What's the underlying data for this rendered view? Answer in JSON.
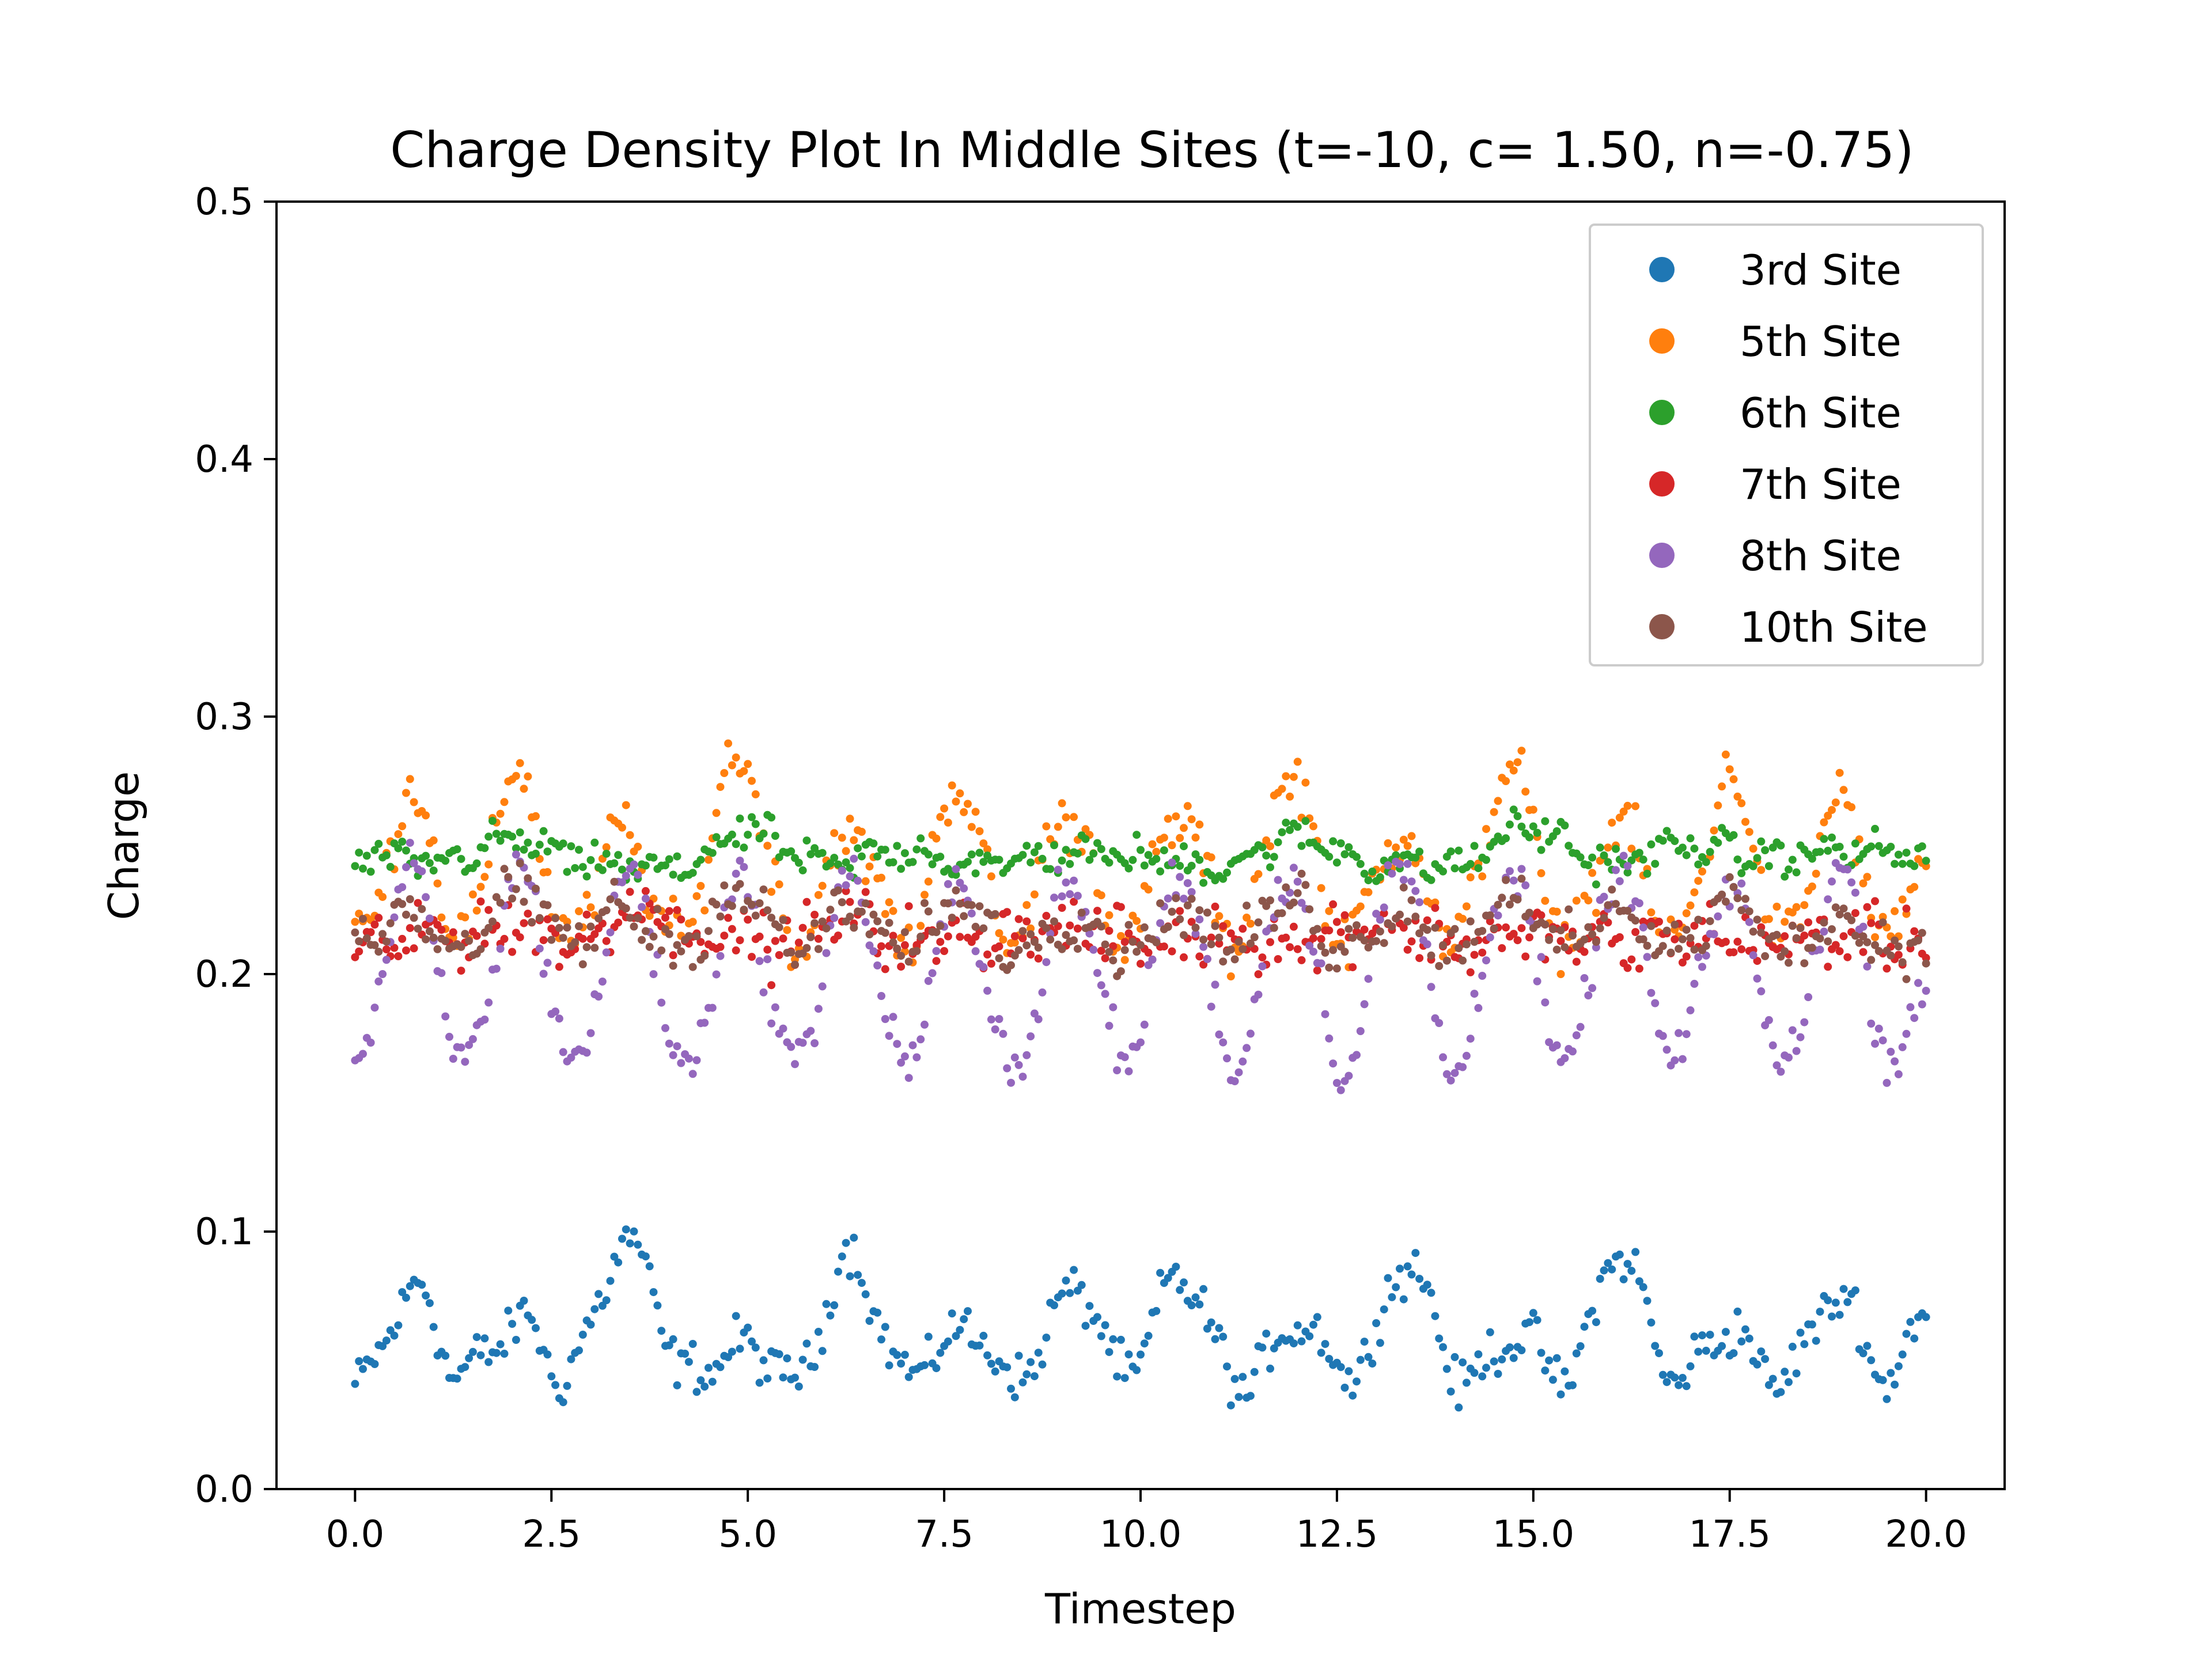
{
  "chart_data": {
    "type": "scatter",
    "title": "Charge Density Plot In Middle Sites (t=-10, c= 1.50, n=-0.75)",
    "xlabel": "Timestep",
    "ylabel": "Charge",
    "xlim": [
      -1.0,
      21.0
    ],
    "ylim": [
      0.0,
      0.5
    ],
    "xticks": [
      0.0,
      2.5,
      5.0,
      7.5,
      10.0,
      12.5,
      15.0,
      17.5,
      20.0
    ],
    "xtick_labels": [
      "0.0",
      "2.5",
      "5.0",
      "7.5",
      "10.0",
      "12.5",
      "15.0",
      "17.5",
      "20.0"
    ],
    "yticks": [
      0.0,
      0.1,
      0.2,
      0.3,
      0.4,
      0.5
    ],
    "ytick_labels": [
      "0.0",
      "0.1",
      "0.2",
      "0.3",
      "0.4",
      "0.5"
    ],
    "legend_position": "top-right",
    "sampling": {
      "x_start": 0.0,
      "x_end": 20.0,
      "step": 0.05
    },
    "series": [
      {
        "name": "3rd Site",
        "color": "#1f77b4",
        "keypoints": [
          [
            0.0,
            0.04
          ],
          [
            0.8,
            0.078
          ],
          [
            1.3,
            0.045
          ],
          [
            2.2,
            0.065
          ],
          [
            2.6,
            0.043
          ],
          [
            3.5,
            0.095
          ],
          [
            4.2,
            0.045
          ],
          [
            5.0,
            0.055
          ],
          [
            5.6,
            0.042
          ],
          [
            6.3,
            0.09
          ],
          [
            7.0,
            0.045
          ],
          [
            7.8,
            0.062
          ],
          [
            8.4,
            0.043
          ],
          [
            9.2,
            0.078
          ],
          [
            9.8,
            0.045
          ],
          [
            10.5,
            0.082
          ],
          [
            11.3,
            0.04
          ],
          [
            12.0,
            0.065
          ],
          [
            12.7,
            0.045
          ],
          [
            13.4,
            0.088
          ],
          [
            14.1,
            0.042
          ],
          [
            14.8,
            0.06
          ],
          [
            15.4,
            0.043
          ],
          [
            16.1,
            0.092
          ],
          [
            16.8,
            0.043
          ],
          [
            17.5,
            0.062
          ],
          [
            18.1,
            0.042
          ],
          [
            18.9,
            0.075
          ],
          [
            19.5,
            0.043
          ],
          [
            20.0,
            0.068
          ]
        ],
        "noise": 0.007
      },
      {
        "name": "5th Site",
        "color": "#ff7f0e",
        "keypoints": [
          [
            0.0,
            0.215
          ],
          [
            0.8,
            0.27
          ],
          [
            1.3,
            0.212
          ],
          [
            2.1,
            0.278
          ],
          [
            2.7,
            0.212
          ],
          [
            3.4,
            0.255
          ],
          [
            4.1,
            0.212
          ],
          [
            4.9,
            0.285
          ],
          [
            5.6,
            0.212
          ],
          [
            6.3,
            0.255
          ],
          [
            7.0,
            0.212
          ],
          [
            7.7,
            0.275
          ],
          [
            8.3,
            0.212
          ],
          [
            9.1,
            0.262
          ],
          [
            9.8,
            0.212
          ],
          [
            10.5,
            0.262
          ],
          [
            11.2,
            0.212
          ],
          [
            11.9,
            0.278
          ],
          [
            12.6,
            0.212
          ],
          [
            13.3,
            0.255
          ],
          [
            14.0,
            0.212
          ],
          [
            14.7,
            0.282
          ],
          [
            15.4,
            0.212
          ],
          [
            16.1,
            0.258
          ],
          [
            16.8,
            0.212
          ],
          [
            17.5,
            0.275
          ],
          [
            18.2,
            0.212
          ],
          [
            18.9,
            0.268
          ],
          [
            19.5,
            0.212
          ],
          [
            20.0,
            0.245
          ]
        ],
        "noise": 0.008
      },
      {
        "name": "6th Site",
        "color": "#2ca02c",
        "keypoints": [
          [
            0.0,
            0.245
          ],
          [
            1.0,
            0.243
          ],
          [
            2.0,
            0.252
          ],
          [
            3.0,
            0.243
          ],
          [
            4.0,
            0.24
          ],
          [
            5.0,
            0.255
          ],
          [
            6.0,
            0.242
          ],
          [
            7.0,
            0.248
          ],
          [
            8.0,
            0.242
          ],
          [
            9.0,
            0.247
          ],
          [
            10.0,
            0.245
          ],
          [
            11.0,
            0.242
          ],
          [
            12.0,
            0.253
          ],
          [
            13.0,
            0.243
          ],
          [
            14.0,
            0.242
          ],
          [
            14.9,
            0.257
          ],
          [
            16.0,
            0.243
          ],
          [
            17.0,
            0.25
          ],
          [
            18.0,
            0.245
          ],
          [
            19.0,
            0.248
          ],
          [
            20.0,
            0.246
          ]
        ],
        "noise": 0.005
      },
      {
        "name": "7th Site",
        "color": "#d62728",
        "keypoints": [
          [
            0.0,
            0.21
          ],
          [
            1.0,
            0.215
          ],
          [
            2.0,
            0.218
          ],
          [
            3.0,
            0.212
          ],
          [
            3.5,
            0.228
          ],
          [
            4.5,
            0.215
          ],
          [
            5.5,
            0.212
          ],
          [
            6.3,
            0.222
          ],
          [
            7.0,
            0.212
          ],
          [
            8.0,
            0.215
          ],
          [
            9.0,
            0.218
          ],
          [
            10.0,
            0.212
          ],
          [
            11.0,
            0.215
          ],
          [
            12.0,
            0.212
          ],
          [
            13.0,
            0.22
          ],
          [
            14.0,
            0.212
          ],
          [
            15.0,
            0.215
          ],
          [
            16.0,
            0.212
          ],
          [
            17.0,
            0.215
          ],
          [
            18.0,
            0.212
          ],
          [
            19.0,
            0.215
          ],
          [
            20.0,
            0.212
          ]
        ],
        "noise": 0.008
      },
      {
        "name": "8th Site",
        "color": "#9467bd",
        "keypoints": [
          [
            0.0,
            0.163
          ],
          [
            0.7,
            0.24
          ],
          [
            1.4,
            0.165
          ],
          [
            2.1,
            0.24
          ],
          [
            2.8,
            0.165
          ],
          [
            3.5,
            0.24
          ],
          [
            4.2,
            0.162
          ],
          [
            4.9,
            0.235
          ],
          [
            5.6,
            0.165
          ],
          [
            6.3,
            0.238
          ],
          [
            7.0,
            0.165
          ],
          [
            7.7,
            0.232
          ],
          [
            8.4,
            0.163
          ],
          [
            9.1,
            0.235
          ],
          [
            9.8,
            0.167
          ],
          [
            10.5,
            0.238
          ],
          [
            11.2,
            0.165
          ],
          [
            11.9,
            0.24
          ],
          [
            12.6,
            0.163
          ],
          [
            13.3,
            0.245
          ],
          [
            14.0,
            0.162
          ],
          [
            14.7,
            0.24
          ],
          [
            15.4,
            0.165
          ],
          [
            16.1,
            0.24
          ],
          [
            16.8,
            0.167
          ],
          [
            17.5,
            0.235
          ],
          [
            18.2,
            0.165
          ],
          [
            18.9,
            0.24
          ],
          [
            19.6,
            0.165
          ],
          [
            20.0,
            0.2
          ]
        ],
        "noise": 0.007
      },
      {
        "name": "10th Site",
        "color": "#8c564b",
        "keypoints": [
          [
            0.0,
            0.21
          ],
          [
            0.7,
            0.225
          ],
          [
            1.3,
            0.21
          ],
          [
            2.1,
            0.232
          ],
          [
            2.7,
            0.212
          ],
          [
            3.4,
            0.225
          ],
          [
            4.1,
            0.21
          ],
          [
            4.9,
            0.232
          ],
          [
            5.6,
            0.21
          ],
          [
            6.3,
            0.225
          ],
          [
            7.0,
            0.21
          ],
          [
            7.7,
            0.228
          ],
          [
            8.4,
            0.21
          ],
          [
            9.1,
            0.222
          ],
          [
            9.8,
            0.21
          ],
          [
            10.5,
            0.225
          ],
          [
            11.2,
            0.21
          ],
          [
            11.9,
            0.23
          ],
          [
            12.6,
            0.21
          ],
          [
            13.3,
            0.225
          ],
          [
            14.0,
            0.21
          ],
          [
            14.7,
            0.232
          ],
          [
            15.4,
            0.21
          ],
          [
            16.1,
            0.225
          ],
          [
            16.8,
            0.21
          ],
          [
            17.5,
            0.228
          ],
          [
            18.2,
            0.21
          ],
          [
            18.9,
            0.222
          ],
          [
            19.5,
            0.21
          ],
          [
            20.0,
            0.212
          ]
        ],
        "noise": 0.007
      }
    ]
  }
}
